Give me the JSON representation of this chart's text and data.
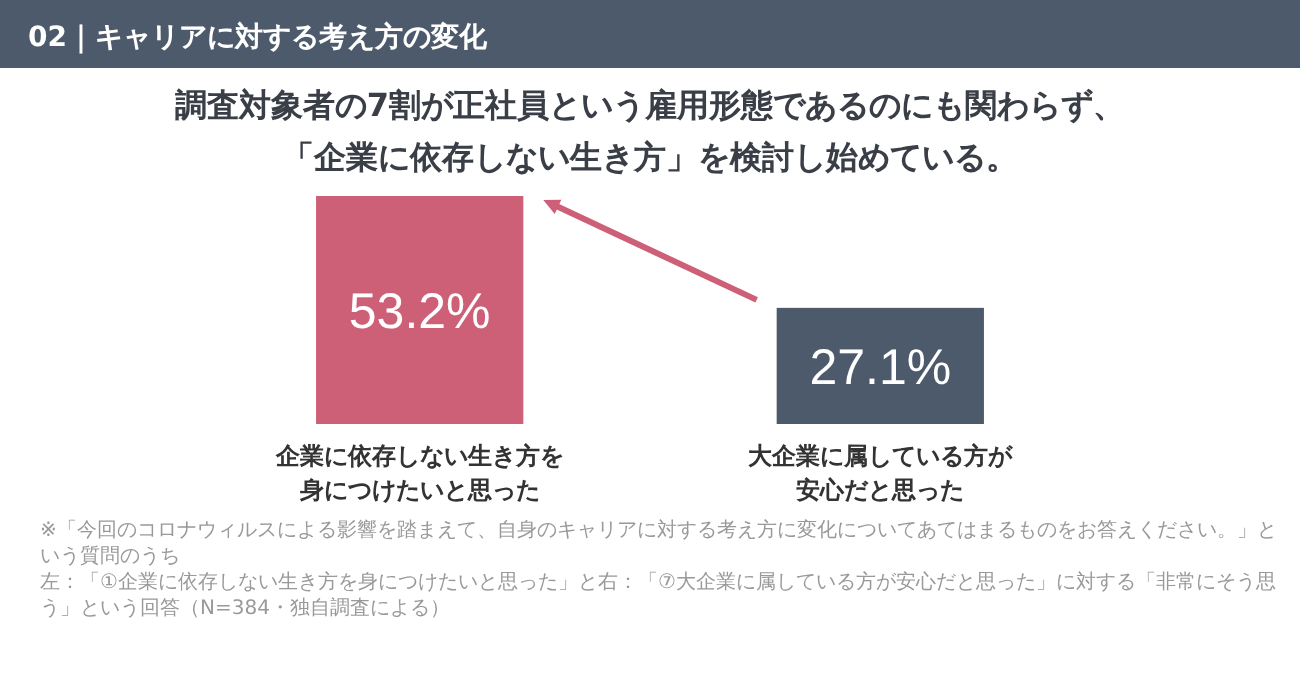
{
  "chart_data": {
    "type": "bar",
    "title": "02｜キャリアに対する考え方の変化",
    "subtitle": "調査対象者の7割が正社員という雇用形態であるのにも関わらず、「企業に依存しない生き方」を検討し始めている。",
    "categories": [
      "企業に依存しない生き方を身につけたいと思った",
      "大企業に属している方が安心だと思った"
    ],
    "values": [
      53.2,
      27.1
    ],
    "colors": [
      "#cd5f76",
      "#4c5a6b"
    ],
    "value_labels": [
      "53.2%",
      "27.1%"
    ],
    "annotations": [
      "※「今回のコロナウィルスによる影響を踏まえて、自身のキャリアに対する考え方に変化についてあてはまるものをお答えください。」という質問のうち",
      "左：「①企業に依存しない生き方を身につけたいと思った」と右：「⑦大企業に属している方が安心だと思った」に対する「非常にそう思う」という回答（N=384・独自調査による）"
    ]
  }
}
